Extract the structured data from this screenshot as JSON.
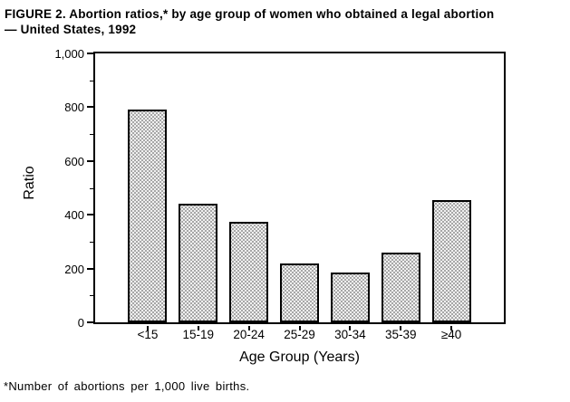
{
  "title": {
    "line1": "FIGURE 2. Abortion ratios,* by age group of women who obtained a legal abortion",
    "line2": "— United States, 1992"
  },
  "footnote": "*Number of abortions per 1,000 live births.",
  "chart_data": {
    "type": "bar",
    "title": "FIGURE 2. Abortion ratios,* by age group of women who obtained a legal abortion — United States, 1992",
    "categories": [
      "<15",
      "15-19",
      "20-24",
      "25-29",
      "30-34",
      "35-39",
      "≥40"
    ],
    "values": [
      790,
      440,
      375,
      220,
      185,
      260,
      455
    ],
    "xlabel": "Age Group (Years)",
    "ylabel": "Ratio",
    "ylim": [
      0,
      1000
    ],
    "yticks": [
      {
        "value": 0,
        "label": "0"
      },
      {
        "value": 200,
        "label": "200"
      },
      {
        "value": 400,
        "label": "400"
      },
      {
        "value": 600,
        "label": "600"
      },
      {
        "value": 800,
        "label": "800"
      },
      {
        "value": 1000,
        "label": "1,000"
      }
    ],
    "minor_yticks": [
      100,
      300,
      500,
      700,
      900
    ],
    "grid": false,
    "frame": "full-box",
    "bar_style": {
      "fill": "stipple-dot-pattern",
      "fill_base": "#f0f0f0",
      "dot_color": "#3a3a3a",
      "border_color": "#000000"
    },
    "colors": {
      "background": "#ffffff",
      "text": "#000000",
      "axis": "#000000"
    }
  }
}
